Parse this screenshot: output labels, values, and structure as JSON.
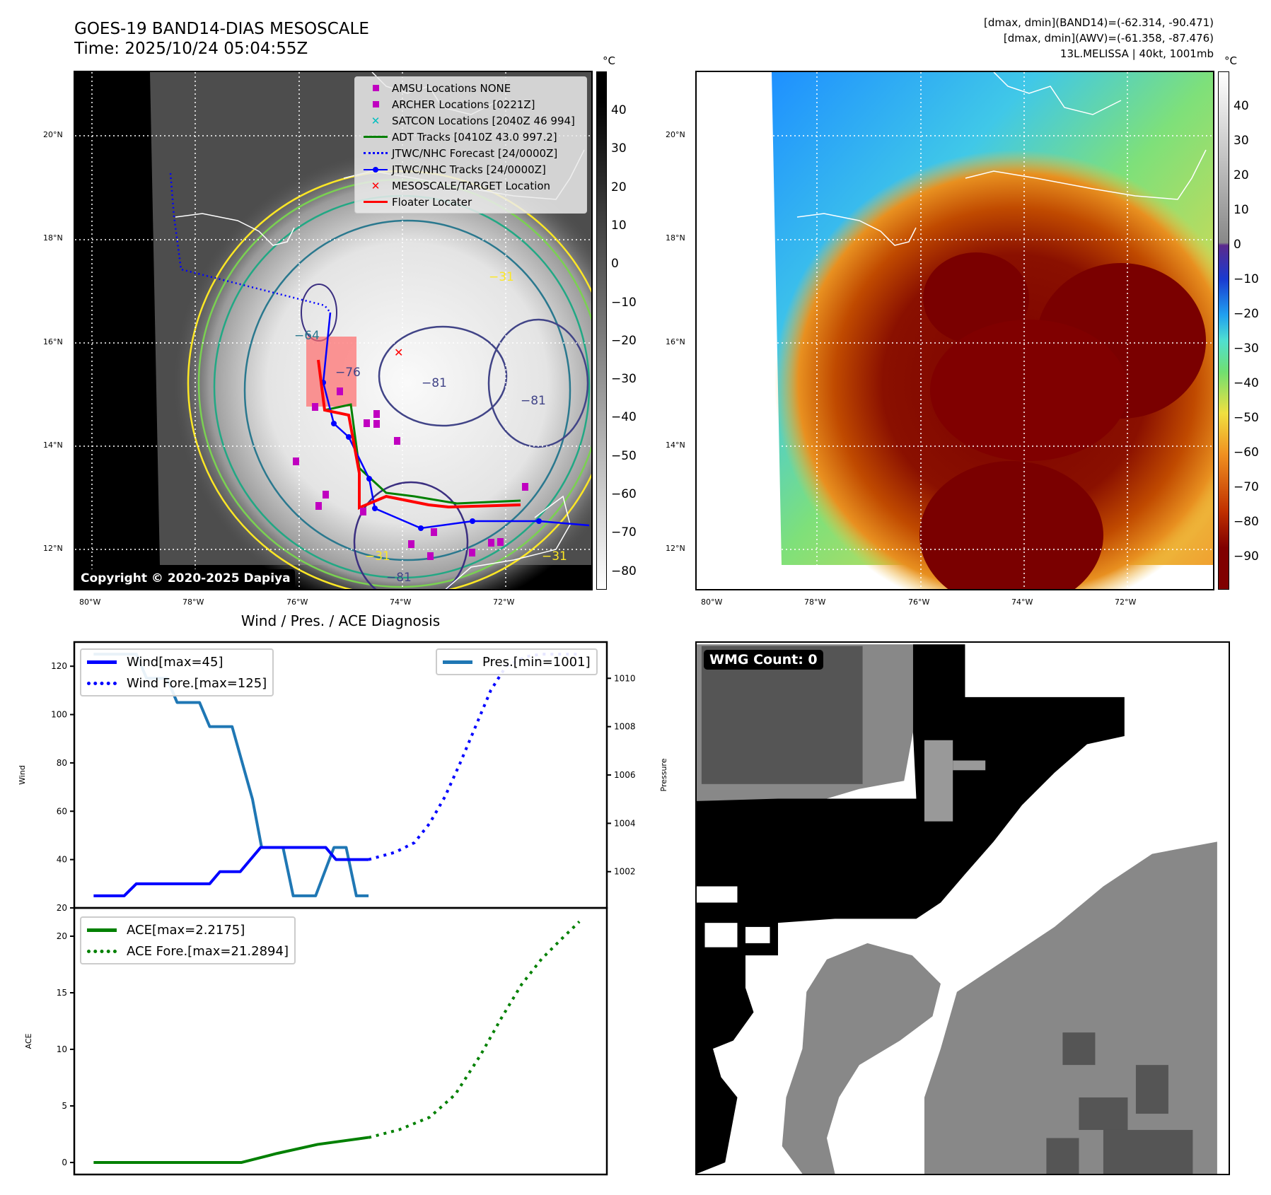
{
  "header": {
    "title": "GOES-19 BAND14-DIAS MESOSCALE",
    "time": "Time: 2025/10/24 05:04:55Z",
    "stats_band14": "[dmax, dmin](BAND14)=(-62.314, -90.471)",
    "stats_awv": "[dmax, dmin](AWV)=(-61.358, -87.476)",
    "storm_info": "13L.MELISSA | 40kt, 1001mb"
  },
  "map_left": {
    "lat_labels": [
      "20°N",
      "18°N",
      "16°N",
      "14°N",
      "12°N"
    ],
    "lon_labels": [
      "80°W",
      "78°W",
      "76°W",
      "74°W",
      "72°W"
    ],
    "colorbar_unit": "°C",
    "colorbar_ticks": [
      "40",
      "30",
      "20",
      "10",
      "0",
      "−10",
      "−20",
      "−30",
      "−40",
      "−50",
      "−60",
      "−70",
      "−80"
    ],
    "copyright": "Copyright © 2020-2025 Dapiya",
    "contour_labels": [
      "−76",
      "−81",
      "−81",
      "−81",
      "−31",
      "−31",
      "−31",
      "−64"
    ],
    "legend": [
      {
        "label": "AMSU Locations NONE",
        "symbol": "square",
        "color": "#c000c0"
      },
      {
        "label": "ARCHER Locations [0221Z]",
        "symbol": "square",
        "color": "#c000c0"
      },
      {
        "label": "SATCON Locations [2040Z 46 994]",
        "symbol": "x",
        "color": "#00bfbf"
      },
      {
        "label": "ADT Tracks [0410Z 43.0 997.2]",
        "symbol": "line",
        "color": "#008000"
      },
      {
        "label": "JTWC/NHC Forecast [24/0000Z]",
        "symbol": "dotted",
        "color": "#0000ff"
      },
      {
        "label": "JTWC/NHC Tracks [24/0000Z]",
        "symbol": "line-dot",
        "color": "#0000ff"
      },
      {
        "label": "MESOSCALE/TARGET Location",
        "symbol": "x",
        "color": "#ff0000"
      },
      {
        "label": "Floater Locater",
        "symbol": "line",
        "color": "#ff0000"
      }
    ]
  },
  "map_right": {
    "lat_labels": [
      "20°N",
      "18°N",
      "16°N",
      "14°N",
      "12°N"
    ],
    "lon_labels": [
      "80°W",
      "78°W",
      "76°W",
      "74°W",
      "72°W"
    ],
    "colorbar_unit": "°C",
    "colorbar_ticks": [
      "40",
      "30",
      "20",
      "10",
      "0",
      "−10",
      "−20",
      "−30",
      "−40",
      "−50",
      "−60",
      "−70",
      "−80",
      "−90"
    ]
  },
  "wmg": {
    "count_label": "WMG Count: 0"
  },
  "chart_data": [
    {
      "type": "line",
      "title": "Wind / Pres. / ACE Diagnosis",
      "ylabel": "Wind",
      "y2label": "Pressure",
      "ylim": [
        20,
        130
      ],
      "y2lim": [
        1000.5,
        1011.5
      ],
      "xlim": [
        -1.9,
        50.4
      ],
      "yticks": [
        20,
        40,
        60,
        80,
        100,
        120
      ],
      "y2ticks": [
        1002,
        1004,
        1006,
        1008,
        1010
      ],
      "series": [
        {
          "name": "Wind[max=45]",
          "color": "#0000ff",
          "style": "solid",
          "axis": "left",
          "x": [
            0,
            3,
            4.2,
            11.4,
            12.4,
            14.4,
            16.4,
            22.8,
            23.8,
            27
          ],
          "y": [
            25,
            25,
            30,
            30,
            35,
            35,
            45,
            45,
            40,
            40
          ]
        },
        {
          "name": "Wind Fore.[max=125]",
          "color": "#0000ff",
          "style": "dotted",
          "axis": "left",
          "x": [
            27,
            29.6,
            31.5,
            33,
            34.5,
            36,
            37.5,
            39,
            40.5,
            42.5,
            44,
            47.7
          ],
          "y": [
            40,
            43,
            47,
            55,
            66,
            80,
            95,
            110,
            120,
            124,
            125,
            125
          ]
        },
        {
          "name": "Pres.[min=1001]",
          "color": "#1f77b4",
          "style": "solid",
          "axis": "right",
          "x": [
            0,
            4.2,
            5.2,
            7.2,
            8.2,
            10.4,
            11.4,
            13.6,
            15.6,
            16.5,
            18.6,
            19.6,
            21.8,
            23.6,
            24.8,
            25.8,
            27
          ],
          "y": [
            1011,
            1011,
            1010,
            1010,
            1009,
            1009,
            1008,
            1008,
            1005,
            1003,
            1003,
            1001,
            1001,
            1003,
            1003,
            1001,
            1001
          ]
        }
      ]
    },
    {
      "type": "line",
      "ylabel": "ACE",
      "ylim": [
        -1.06,
        22.5
      ],
      "xlim": [
        -1.9,
        50.4
      ],
      "yticks": [
        0,
        5,
        10,
        15,
        20
      ],
      "series": [
        {
          "name": "ACE[max=2.2175]",
          "color": "#008000",
          "style": "solid",
          "x": [
            0,
            14.5,
            18,
            22,
            27
          ],
          "y": [
            0,
            0,
            0.8,
            1.6,
            2.2175
          ]
        },
        {
          "name": "ACE Fore.[max=21.2894]",
          "color": "#008000",
          "style": "dotted",
          "x": [
            27,
            30,
            33,
            35.5,
            38,
            40,
            42,
            44,
            46,
            47.7
          ],
          "y": [
            2.2,
            2.9,
            4,
            6,
            9.5,
            12.7,
            15.7,
            18,
            19.8,
            21.29
          ]
        }
      ]
    }
  ]
}
